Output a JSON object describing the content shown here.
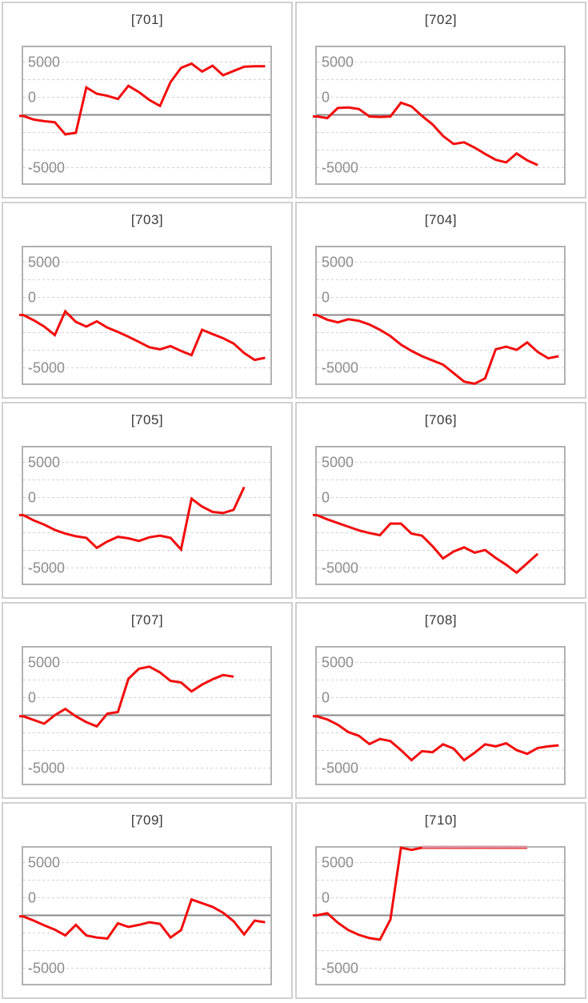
{
  "page": {
    "background": "#ffffff",
    "description_labels": []
  },
  "colors": {
    "line": "#f20d0d",
    "line_clipped": "#da97a4",
    "grid_dashed": "#d2d2d2",
    "zero_line": "#8a8a8a",
    "plot_border": "#b2b2b2",
    "card_border": "#d0d0d0",
    "title_text": "#3a3a3a",
    "axis_text": "#8e8e8e",
    "background": "#ffffff"
  },
  "chart_data": {
    "type": "line",
    "legend": "none",
    "xlabel": "",
    "ylabel": "",
    "ylim": [
      -6400,
      6400
    ],
    "clip_value": 6700,
    "zero_value": 0,
    "grid": "dashed-horizontal",
    "gridline_values": [
      5000,
      3333,
      1667,
      0,
      -1667,
      -3333,
      -5000
    ],
    "yticks": [
      {
        "label": "5000",
        "value": 5000,
        "label_at_value": 5000
      },
      {
        "label": "0",
        "value": 0,
        "label_at_value": 1667
      },
      {
        "label": "-5000",
        "value": -5000,
        "label_at_value": -5000
      }
    ],
    "charts": [
      {
        "title": "[701]",
        "values": [
          -100,
          -450,
          -600,
          -700,
          -1850,
          -1700,
          2600,
          2000,
          1800,
          1500,
          2750,
          2150,
          1400,
          850,
          3100,
          4450,
          4850,
          4100,
          4650,
          3750,
          4150,
          4550,
          4600,
          4600
        ]
      },
      {
        "title": "[702]",
        "values": [
          -150,
          -300,
          650,
          700,
          550,
          -150,
          -200,
          -150,
          1150,
          800,
          -100,
          -900,
          -2000,
          -2750,
          -2600,
          -3100,
          -3700,
          -4250,
          -4500,
          -3650,
          -4300,
          -4750
        ]
      },
      {
        "title": "[703]",
        "values": [
          0,
          -500,
          -1100,
          -1900,
          350,
          -650,
          -1100,
          -600,
          -1200,
          -1600,
          -2050,
          -2550,
          -3050,
          -3250,
          -2950,
          -3400,
          -3800,
          -1400,
          -1800,
          -2200,
          -2700,
          -3600,
          -4250,
          -4050
        ]
      },
      {
        "title": "[704]",
        "values": [
          0,
          -450,
          -700,
          -400,
          -550,
          -900,
          -1400,
          -2000,
          -2800,
          -3400,
          -3900,
          -4300,
          -4700,
          -5500,
          -6300,
          -6500,
          -6000,
          -3250,
          -3000,
          -3300,
          -2600,
          -3500,
          -4100,
          -3900
        ]
      },
      {
        "title": "[705]",
        "values": [
          0,
          -500,
          -900,
          -1400,
          -1750,
          -2000,
          -2150,
          -3100,
          -2500,
          -2050,
          -2200,
          -2450,
          -2100,
          -1950,
          -2150,
          -3250,
          1550,
          800,
          300,
          200,
          500,
          2650
        ]
      },
      {
        "title": "[706]",
        "values": [
          0,
          -400,
          -750,
          -1100,
          -1450,
          -1700,
          -1900,
          -800,
          -800,
          -1750,
          -1950,
          -2950,
          -4100,
          -3450,
          -3050,
          -3550,
          -3300,
          -4050,
          -4700,
          -5450,
          -4550,
          -3650
        ]
      },
      {
        "title": "[707]",
        "values": [
          -100,
          -450,
          -800,
          0,
          600,
          -100,
          -650,
          -1050,
          150,
          300,
          3450,
          4400,
          4600,
          4050,
          3250,
          3100,
          2250,
          2900,
          3400,
          3800,
          3650
        ]
      },
      {
        "title": "[708]",
        "values": [
          -100,
          -400,
          -900,
          -1600,
          -1950,
          -2730,
          -2250,
          -2450,
          -3300,
          -4250,
          -3400,
          -3500,
          -2750,
          -3150,
          -4250,
          -3550,
          -2750,
          -2950,
          -2650,
          -3300,
          -3650,
          -3100,
          -2950,
          -2850
        ]
      },
      {
        "title": "[709]",
        "values": [
          -100,
          -500,
          -950,
          -1350,
          -1900,
          -900,
          -1900,
          -2100,
          -2200,
          -750,
          -1100,
          -900,
          -650,
          -800,
          -2100,
          -1400,
          1500,
          1150,
          800,
          250,
          -550,
          -1800,
          -500,
          -650
        ]
      },
      {
        "title": "[710]",
        "values": [
          0,
          200,
          -700,
          -1400,
          -1850,
          -2150,
          -2300,
          -400,
          6800,
          6200,
          6800,
          6800,
          6800,
          6800,
          6800,
          6800,
          6800,
          6800,
          6800,
          6800,
          6800
        ]
      }
    ]
  }
}
